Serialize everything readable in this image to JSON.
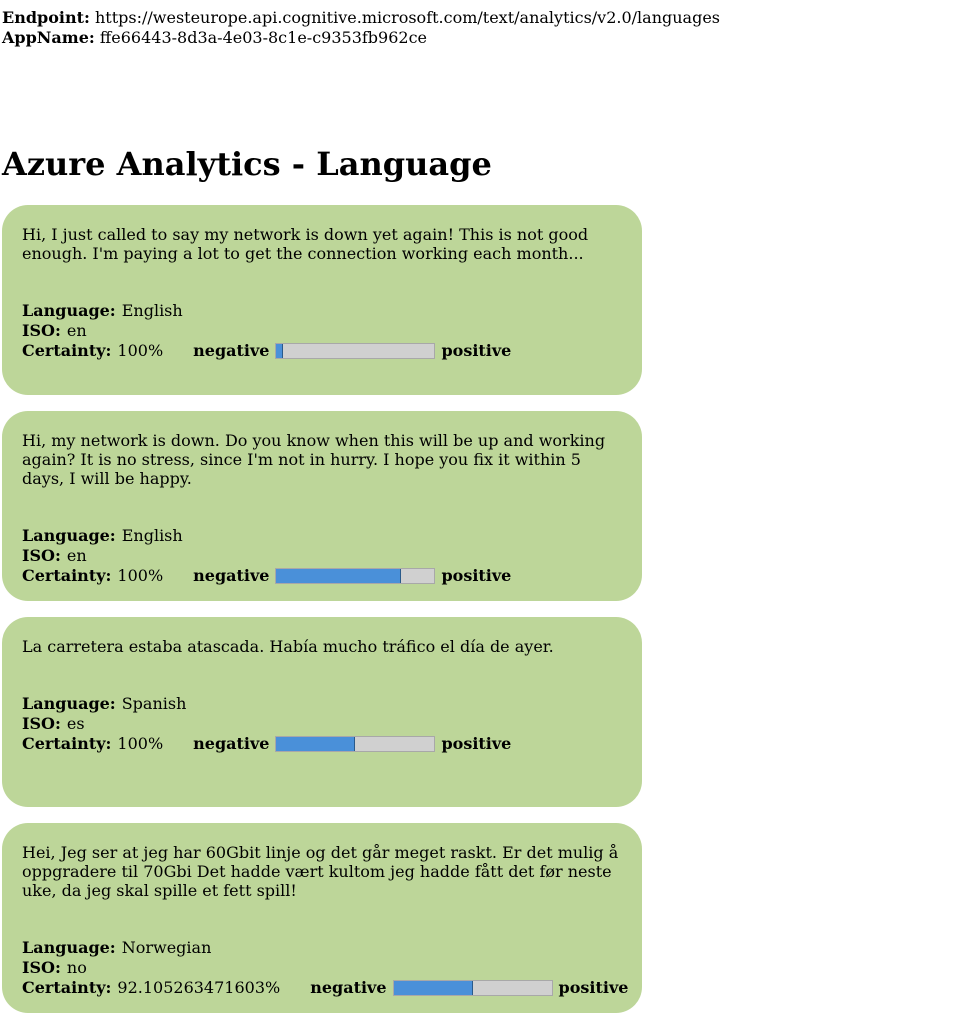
{
  "header": {
    "endpoint_label": "Endpoint:",
    "endpoint_value": "https://westeurope.api.cognitive.microsoft.com/text/analytics/v2.0/languages",
    "appname_label": "AppName:",
    "appname_value": "ffe66443-8d3a-4e03-8c1e-c9353fb962ce"
  },
  "page_title": "Azure Analytics - Language",
  "labels": {
    "language": "Language:",
    "iso": "ISO:",
    "certainty": "Certainty:",
    "negative": "negative",
    "positive": "positive"
  },
  "colors": {
    "card_background": "#bdd699",
    "bar_fill": "#4a90d9",
    "bar_track": "#d0d0d0"
  },
  "results": [
    {
      "text": "Hi, I just called to say my network is down yet again! This is not good enough. I'm paying a lot to get the connection working each month...",
      "language": "English",
      "iso": "en",
      "certainty": "100%",
      "sentiment": 0.04
    },
    {
      "text": "Hi, my network is down. Do you know when this will be up and working again? It is no stress, since I'm not in hurry. I hope you fix it within 5 days, I will be happy.",
      "language": "English",
      "iso": "en",
      "certainty": "100%",
      "sentiment": 0.79
    },
    {
      "text": "La carretera estaba atascada. Había mucho tráfico el día de ayer.",
      "language": "Spanish",
      "iso": "es",
      "certainty": "100%",
      "sentiment": 0.5
    },
    {
      "text": "Hei, Jeg ser at jeg har 60Gbit linje og det går meget raskt. Er det mulig å oppgradere til 70Gbi Det hadde vært kultom jeg hadde fått det før neste uke, da jeg skal spille et fett spill!",
      "language": "Norwegian",
      "iso": "no",
      "certainty": "92.105263471603%",
      "sentiment": 0.5
    }
  ]
}
